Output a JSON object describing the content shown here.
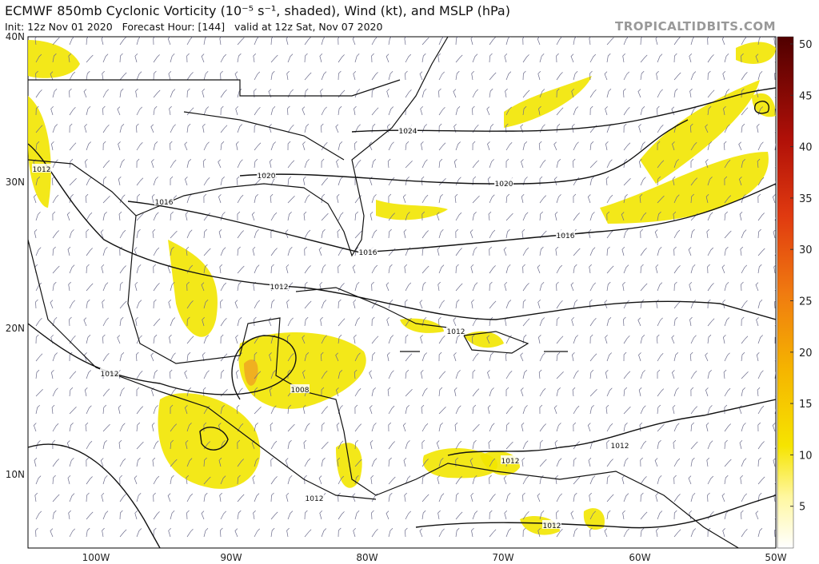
{
  "header": {
    "title": "ECMWF 850mb Cyclonic Vorticity (10⁻⁵ s⁻¹, shaded), Wind (kt), and MSLP (hPa)",
    "subtitle": "Init: 12z Nov 01 2020   Forecast Hour: [144]   valid at 12z Sat, Nov 07 2020",
    "watermark": "TROPICALTIDBITS.COM"
  },
  "latitude_labels": [
    "40N",
    "30N",
    "20N",
    "10N"
  ],
  "longitude_labels": [
    "100W",
    "90W",
    "80W",
    "70W",
    "60W",
    "50W"
  ],
  "colorbar": {
    "ticks": [
      5,
      10,
      15,
      20,
      25,
      30,
      35,
      40,
      45,
      50
    ]
  },
  "isobar_labels": [
    "1024",
    "1020",
    "1020",
    "1016",
    "1016",
    "1016",
    "1012",
    "1012",
    "1012",
    "1012",
    "1012",
    "1012",
    "1012",
    "1012",
    "1008"
  ]
}
